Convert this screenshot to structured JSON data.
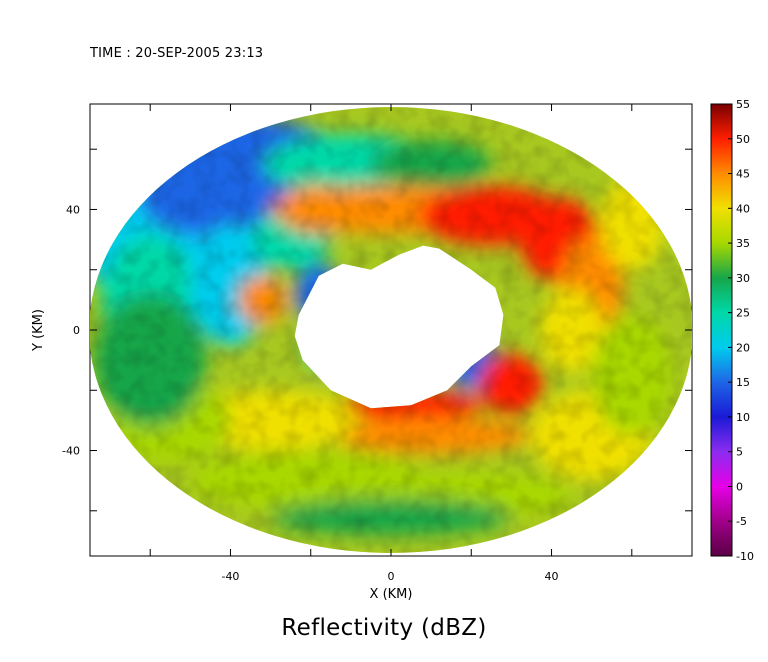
{
  "time_label": "TIME : 20-SEP-2005 23:13",
  "chart_data": {
    "type": "heatmap",
    "title": "Reflectivity (dBZ)",
    "xlabel": "X (KM)",
    "ylabel": "Y (KM)",
    "xlim": [
      -75,
      75
    ],
    "ylim": [
      -75,
      75
    ],
    "x_ticks": [
      -40,
      0,
      40
    ],
    "y_ticks": [
      40,
      0,
      -40
    ],
    "colorbar": {
      "label": "Reflectivity (dBZ)",
      "ticks": [
        55,
        50,
        45,
        40,
        35,
        30,
        25,
        20,
        15,
        10,
        5,
        0,
        -5,
        -10
      ],
      "range": [
        -10,
        55
      ],
      "stops": [
        {
          "value": -10,
          "color": "#5a0044"
        },
        {
          "value": -5,
          "color": "#a0008a"
        },
        {
          "value": 0,
          "color": "#e600e6"
        },
        {
          "value": 5,
          "color": "#8b2cf0"
        },
        {
          "value": 10,
          "color": "#1a1ad6"
        },
        {
          "value": 15,
          "color": "#1e66e6"
        },
        {
          "value": 20,
          "color": "#00ccee"
        },
        {
          "value": 25,
          "color": "#00d8a8"
        },
        {
          "value": 30,
          "color": "#17a64a"
        },
        {
          "value": 35,
          "color": "#a8d800"
        },
        {
          "value": 40,
          "color": "#f0e000"
        },
        {
          "value": 45,
          "color": "#ff8c00"
        },
        {
          "value": 50,
          "color": "#ff1e00"
        },
        {
          "value": 55,
          "color": "#7a0000"
        }
      ]
    },
    "field_structure": {
      "outer_range_km": 74,
      "inner_cleared_region": "white (no data) around radar center",
      "features": [
        {
          "name": "inner eyewall",
          "reflectivity_dbz": "40-50",
          "x_km": 25,
          "y_km": 35
        },
        {
          "name": "southern rainband",
          "reflectivity_dbz": "45-50",
          "x_km": 5,
          "y_km": -25
        },
        {
          "name": "northwest low-reflectivity region",
          "reflectivity_dbz": "10-20",
          "x_km": -35,
          "y_km": 40
        },
        {
          "name": "northeast outer rainband",
          "reflectivity_dbz": "45-50",
          "x_km": 45,
          "y_km": 20
        }
      ]
    }
  }
}
